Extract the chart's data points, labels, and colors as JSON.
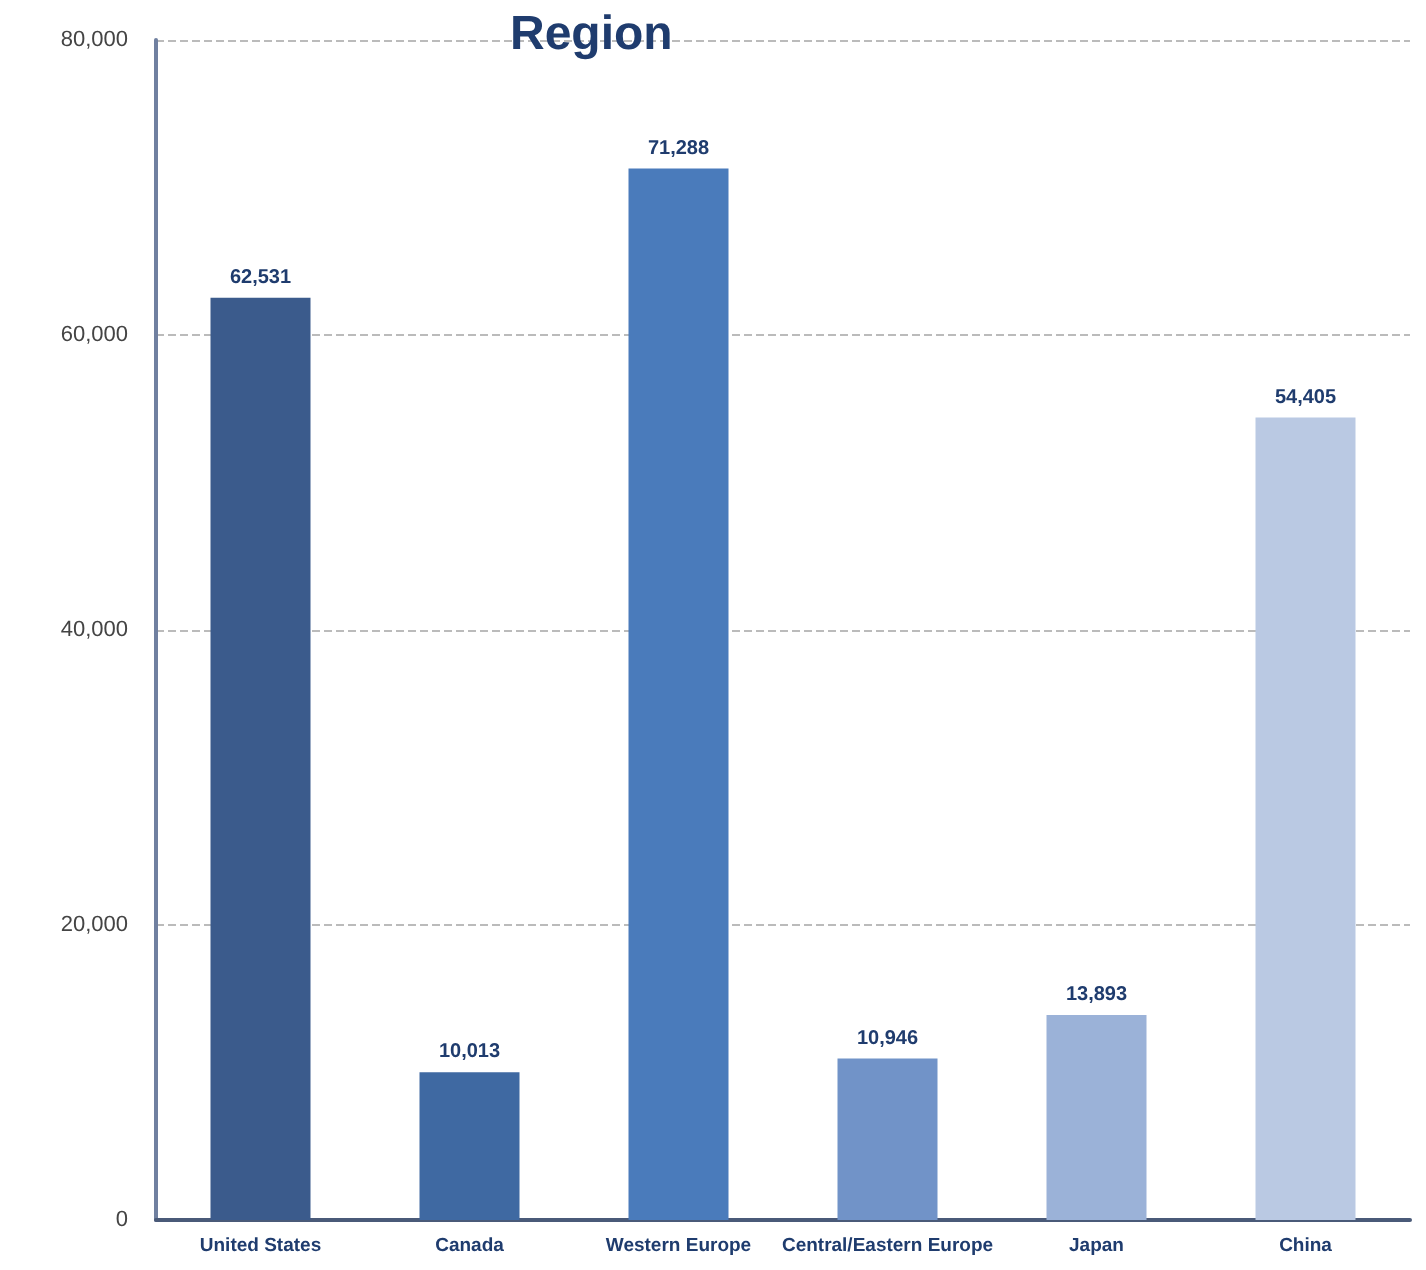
{
  "chart_data": {
    "type": "bar",
    "title": "Region",
    "categories": [
      "United States",
      "Canada",
      "Western Europe",
      "Central/Eastern Europe",
      "Japan",
      "China"
    ],
    "values": [
      62531,
      10013,
      71288,
      10946,
      13893,
      54405
    ],
    "colors": [
      "#3b5b8c",
      "#3f69a2",
      "#4a7bbb",
      "#7193c8",
      "#9bb2d8",
      "#bac9e3"
    ],
    "value_labels": [
      "62,531",
      "10,013",
      "71,288",
      "10,946",
      "13,893",
      "54,405"
    ],
    "ylim": [
      0,
      80000
    ],
    "yticks": [
      0,
      {
        "value": 20000,
        "label": "20,000"
      },
      {
        "value": 40000,
        "label": "40,000"
      },
      {
        "value": 60000,
        "label": "60,000"
      },
      {
        "value": 80000,
        "label": "80,000"
      }
    ],
    "grid": "y"
  }
}
